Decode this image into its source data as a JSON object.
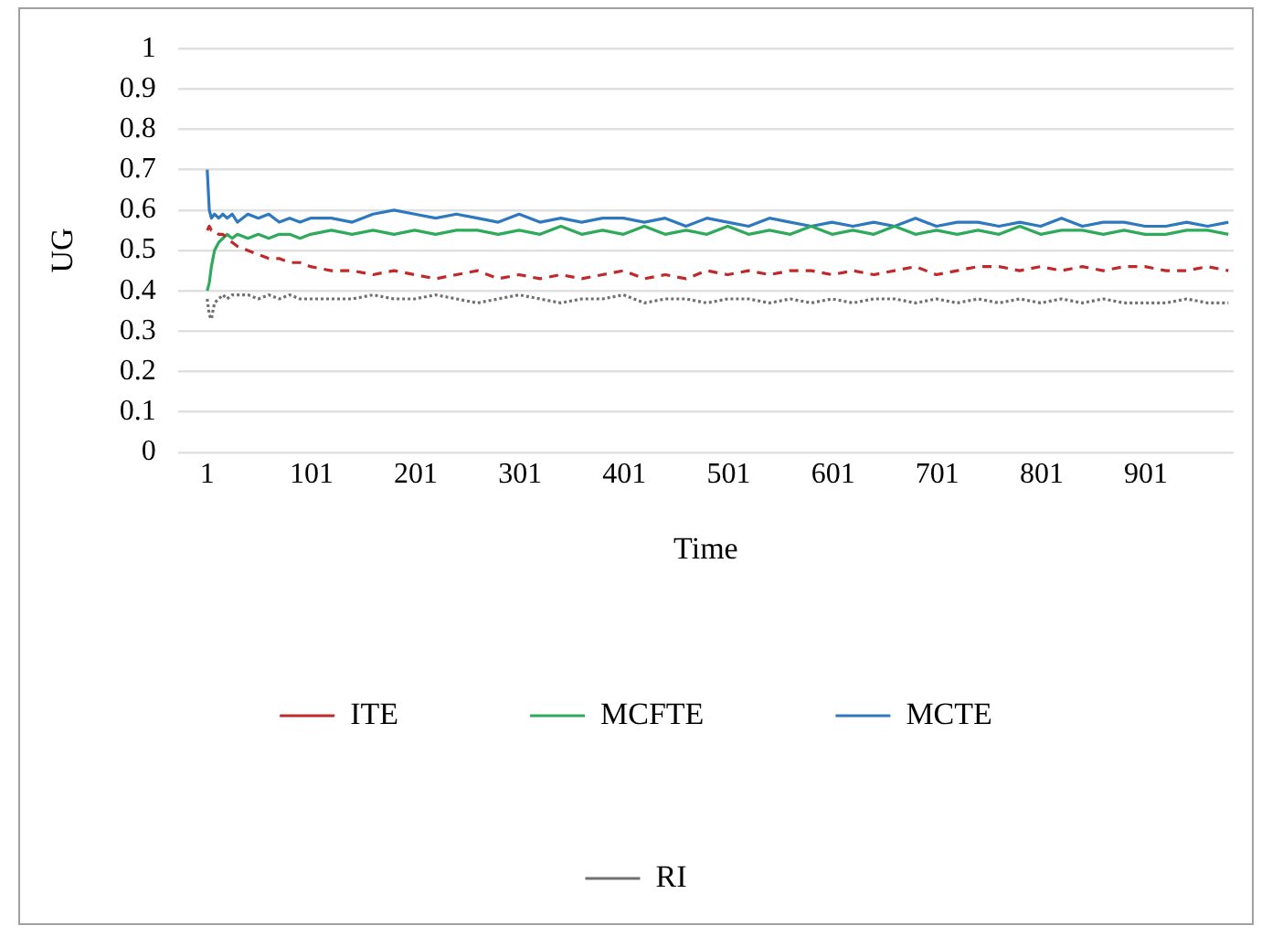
{
  "chart_data": {
    "type": "line",
    "xlabel": "Time",
    "ylabel": "UG",
    "x": [
      1,
      3,
      5,
      8,
      12,
      16,
      20,
      25,
      30,
      40,
      50,
      60,
      70,
      80,
      90,
      100,
      120,
      140,
      160,
      180,
      200,
      220,
      240,
      260,
      280,
      300,
      320,
      340,
      360,
      380,
      400,
      420,
      440,
      460,
      480,
      500,
      520,
      540,
      560,
      580,
      600,
      620,
      640,
      660,
      680,
      700,
      720,
      740,
      760,
      780,
      800,
      820,
      840,
      860,
      880,
      900,
      920,
      940,
      960,
      980
    ],
    "xlim": [
      -27,
      985
    ],
    "xticks": [
      1,
      101,
      201,
      301,
      401,
      501,
      601,
      701,
      801,
      901
    ],
    "ylim": [
      0,
      1
    ],
    "yticks": [
      0,
      0.1,
      0.2,
      0.3,
      0.4,
      0.5,
      0.6,
      0.7,
      0.8,
      0.9,
      1
    ],
    "grid": "y",
    "legend": "bottom",
    "marker": "none",
    "series": [
      {
        "name": "ITE",
        "color": "#c0282a",
        "line_style": "dashed",
        "values": [
          0.55,
          0.56,
          0.55,
          0.55,
          0.54,
          0.54,
          0.53,
          0.52,
          0.51,
          0.5,
          0.49,
          0.48,
          0.48,
          0.47,
          0.47,
          0.46,
          0.45,
          0.45,
          0.44,
          0.45,
          0.44,
          0.43,
          0.44,
          0.45,
          0.43,
          0.44,
          0.43,
          0.44,
          0.43,
          0.44,
          0.45,
          0.43,
          0.44,
          0.43,
          0.45,
          0.44,
          0.45,
          0.44,
          0.45,
          0.45,
          0.44,
          0.45,
          0.44,
          0.45,
          0.46,
          0.44,
          0.45,
          0.46,
          0.46,
          0.45,
          0.46,
          0.45,
          0.46,
          0.45,
          0.46,
          0.46,
          0.45,
          0.45,
          0.46,
          0.45
        ]
      },
      {
        "name": "MCFTE",
        "color": "#2eaa5a",
        "line_style": "solid",
        "values": [
          0.4,
          0.42,
          0.46,
          0.5,
          0.52,
          0.53,
          0.54,
          0.53,
          0.54,
          0.53,
          0.54,
          0.53,
          0.54,
          0.54,
          0.53,
          0.54,
          0.55,
          0.54,
          0.55,
          0.54,
          0.55,
          0.54,
          0.55,
          0.55,
          0.54,
          0.55,
          0.54,
          0.56,
          0.54,
          0.55,
          0.54,
          0.56,
          0.54,
          0.55,
          0.54,
          0.56,
          0.54,
          0.55,
          0.54,
          0.56,
          0.54,
          0.55,
          0.54,
          0.56,
          0.54,
          0.55,
          0.54,
          0.55,
          0.54,
          0.56,
          0.54,
          0.55,
          0.55,
          0.54,
          0.55,
          0.54,
          0.54,
          0.55,
          0.55,
          0.54
        ]
      },
      {
        "name": "MCTE",
        "color": "#2e78c0",
        "line_style": "solid",
        "values": [
          0.7,
          0.6,
          0.58,
          0.59,
          0.58,
          0.59,
          0.58,
          0.59,
          0.57,
          0.59,
          0.58,
          0.59,
          0.57,
          0.58,
          0.57,
          0.58,
          0.58,
          0.57,
          0.59,
          0.6,
          0.59,
          0.58,
          0.59,
          0.58,
          0.57,
          0.59,
          0.57,
          0.58,
          0.57,
          0.58,
          0.58,
          0.57,
          0.58,
          0.56,
          0.58,
          0.57,
          0.56,
          0.58,
          0.57,
          0.56,
          0.57,
          0.56,
          0.57,
          0.56,
          0.58,
          0.56,
          0.57,
          0.57,
          0.56,
          0.57,
          0.56,
          0.58,
          0.56,
          0.57,
          0.57,
          0.56,
          0.56,
          0.57,
          0.56,
          0.57
        ]
      },
      {
        "name": "RI",
        "color": "#707070",
        "line_style": "dotted",
        "values": [
          0.38,
          0.34,
          0.33,
          0.37,
          0.38,
          0.39,
          0.38,
          0.39,
          0.39,
          0.39,
          0.38,
          0.39,
          0.38,
          0.39,
          0.38,
          0.38,
          0.38,
          0.38,
          0.39,
          0.38,
          0.38,
          0.39,
          0.38,
          0.37,
          0.38,
          0.39,
          0.38,
          0.37,
          0.38,
          0.38,
          0.39,
          0.37,
          0.38,
          0.38,
          0.37,
          0.38,
          0.38,
          0.37,
          0.38,
          0.37,
          0.38,
          0.37,
          0.38,
          0.38,
          0.37,
          0.38,
          0.37,
          0.38,
          0.37,
          0.38,
          0.37,
          0.38,
          0.37,
          0.38,
          0.37,
          0.37,
          0.37,
          0.38,
          0.37,
          0.37
        ]
      }
    ]
  }
}
